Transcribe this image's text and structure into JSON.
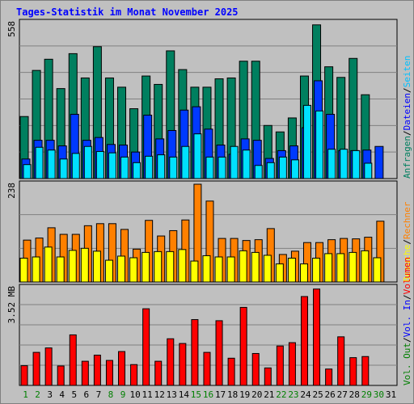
{
  "title": "Tages-Statistik im Monat November 2025",
  "chart_data": [
    {
      "type": "bar",
      "panel": "requests",
      "ymax_label": "558",
      "ylim": [
        0,
        558
      ],
      "grid": true,
      "legend": "right side, vertical text",
      "categories": [
        "1",
        "2",
        "3",
        "4",
        "5",
        "6",
        "7",
        "8",
        "9",
        "10",
        "11",
        "12",
        "13",
        "14",
        "15",
        "16",
        "17",
        "18",
        "19",
        "20",
        "21",
        "22",
        "23",
        "24",
        "25",
        "26",
        "27",
        "28",
        "29",
        "30",
        "31"
      ],
      "series": [
        {
          "name": "Anfragen",
          "color": "#007f5f",
          "values": [
            222,
            387,
            427,
            322,
            447,
            360,
            472,
            360,
            327,
            250,
            367,
            337,
            457,
            390,
            327,
            327,
            357,
            360,
            420,
            420,
            190,
            167,
            217,
            367,
            550,
            400,
            362,
            430,
            300,
            0,
            0
          ]
        },
        {
          "name": "Dateien",
          "color": "#0039ff",
          "values": [
            70,
            137,
            137,
            117,
            230,
            137,
            147,
            122,
            120,
            95,
            227,
            142,
            172,
            245,
            257,
            177,
            120,
            87,
            142,
            137,
            72,
            100,
            117,
            182,
            350,
            230,
            100,
            100,
            102,
            115,
            0
          ]
        },
        {
          "name": "Seiten",
          "color": "#00e0ff",
          "values": [
            50,
            112,
            102,
            70,
            90,
            115,
            97,
            92,
            77,
            57,
            80,
            85,
            77,
            115,
            160,
            77,
            77,
            115,
            102,
            47,
            57,
            77,
            67,
            262,
            242,
            105,
            105,
            100,
            55,
            0,
            0
          ]
        }
      ]
    },
    {
      "type": "bar",
      "panel": "visits",
      "ymax_label": "238",
      "ylim": [
        0,
        238
      ],
      "grid": true,
      "legend": "right side, vertical text",
      "categories": [
        "1",
        "2",
        "3",
        "4",
        "5",
        "6",
        "7",
        "8",
        "9",
        "10",
        "11",
        "12",
        "13",
        "14",
        "15",
        "16",
        "17",
        "18",
        "19",
        "20",
        "21",
        "22",
        "23",
        "24",
        "25",
        "26",
        "27",
        "28",
        "29",
        "30",
        "31"
      ],
      "series": [
        {
          "name": "Rechner",
          "color": "#ff8000",
          "values": [
            102,
            107,
            132,
            116,
            116,
            137,
            142,
            142,
            128,
            80,
            150,
            112,
            125,
            151,
            238,
            197,
            106,
            106,
            101,
            103,
            130,
            67,
            75,
            96,
            96,
            103,
            106,
            105,
            109,
            148,
            0
          ]
        },
        {
          "name": "Besuche",
          "color": "#ffff00",
          "values": [
            58,
            61,
            85,
            61,
            77,
            82,
            75,
            53,
            63,
            59,
            72,
            74,
            74,
            79,
            51,
            64,
            61,
            61,
            76,
            72,
            65,
            44,
            58,
            44,
            58,
            69,
            69,
            72,
            76,
            59,
            0
          ]
        }
      ]
    },
    {
      "type": "bar",
      "panel": "volume",
      "ymax_label": "3.52 MB",
      "ylim": [
        0,
        3.52
      ],
      "grid": true,
      "legend": "right side, vertical text",
      "categories": [
        "1",
        "2",
        "3",
        "4",
        "5",
        "6",
        "7",
        "8",
        "9",
        "10",
        "11",
        "12",
        "13",
        "14",
        "15",
        "16",
        "17",
        "18",
        "19",
        "20",
        "21",
        "22",
        "23",
        "24",
        "25",
        "26",
        "27",
        "28",
        "29",
        "30",
        "31"
      ],
      "series": [
        {
          "name": "Volumen",
          "color": "#ff0000",
          "values": [
            0.71,
            1.19,
            1.35,
            0.7,
            1.82,
            0.87,
            1.09,
            0.9,
            1.22,
            0.75,
            2.76,
            0.87,
            1.68,
            1.51,
            2.37,
            1.19,
            2.33,
            0.98,
            2.81,
            1.15,
            0.63,
            1.42,
            1.54,
            3.2,
            3.47,
            0.59,
            1.75,
            1.0,
            1.04,
            0,
            0
          ]
        }
      ],
      "legend_extra": [
        "Vol. In",
        "Vol. Out"
      ]
    }
  ],
  "x_ticks": [
    {
      "day": "1",
      "color": "#007f00"
    },
    {
      "day": "2",
      "color": "#007f00"
    },
    {
      "day": "3",
      "color": "#000000"
    },
    {
      "day": "4",
      "color": "#000000"
    },
    {
      "day": "5",
      "color": "#000000"
    },
    {
      "day": "6",
      "color": "#000000"
    },
    {
      "day": "7",
      "color": "#000000"
    },
    {
      "day": "8",
      "color": "#007f00"
    },
    {
      "day": "9",
      "color": "#007f00"
    },
    {
      "day": "10",
      "color": "#000000"
    },
    {
      "day": "11",
      "color": "#000000"
    },
    {
      "day": "12",
      "color": "#000000"
    },
    {
      "day": "13",
      "color": "#000000"
    },
    {
      "day": "14",
      "color": "#000000"
    },
    {
      "day": "15",
      "color": "#007f00"
    },
    {
      "day": "16",
      "color": "#007f00"
    },
    {
      "day": "17",
      "color": "#000000"
    },
    {
      "day": "18",
      "color": "#000000"
    },
    {
      "day": "19",
      "color": "#000000"
    },
    {
      "day": "20",
      "color": "#000000"
    },
    {
      "day": "21",
      "color": "#000000"
    },
    {
      "day": "22",
      "color": "#007f00"
    },
    {
      "day": "23",
      "color": "#007f00"
    },
    {
      "day": "24",
      "color": "#000000"
    },
    {
      "day": "25",
      "color": "#000000"
    },
    {
      "day": "26",
      "color": "#000000"
    },
    {
      "day": "27",
      "color": "#000000"
    },
    {
      "day": "28",
      "color": "#000000"
    },
    {
      "day": "29",
      "color": "#007f00"
    },
    {
      "day": "30",
      "color": "#007f00"
    },
    {
      "day": "31",
      "color": "#000000"
    }
  ],
  "legend": {
    "panel1": [
      {
        "text": "Anfragen",
        "color": "#007f5f"
      },
      {
        "text": "Dateien",
        "color": "#0000ff"
      },
      {
        "text": "Seiten",
        "color": "#00c0ff"
      }
    ],
    "panel2": [
      {
        "text": "Besuche",
        "color": "#ffff00"
      },
      {
        "text": "Rechner",
        "color": "#ff8000"
      }
    ],
    "panel3": [
      {
        "text": "Vol. Out",
        "color": "#007f00"
      },
      {
        "text": "Vol. In",
        "color": "#0000ff"
      },
      {
        "text": "Volumen",
        "color": "#ff0000"
      }
    ]
  },
  "colors": {
    "background": "#c0c0c0",
    "title": "#0000ff",
    "grid": "#808080",
    "border": "#000000"
  }
}
